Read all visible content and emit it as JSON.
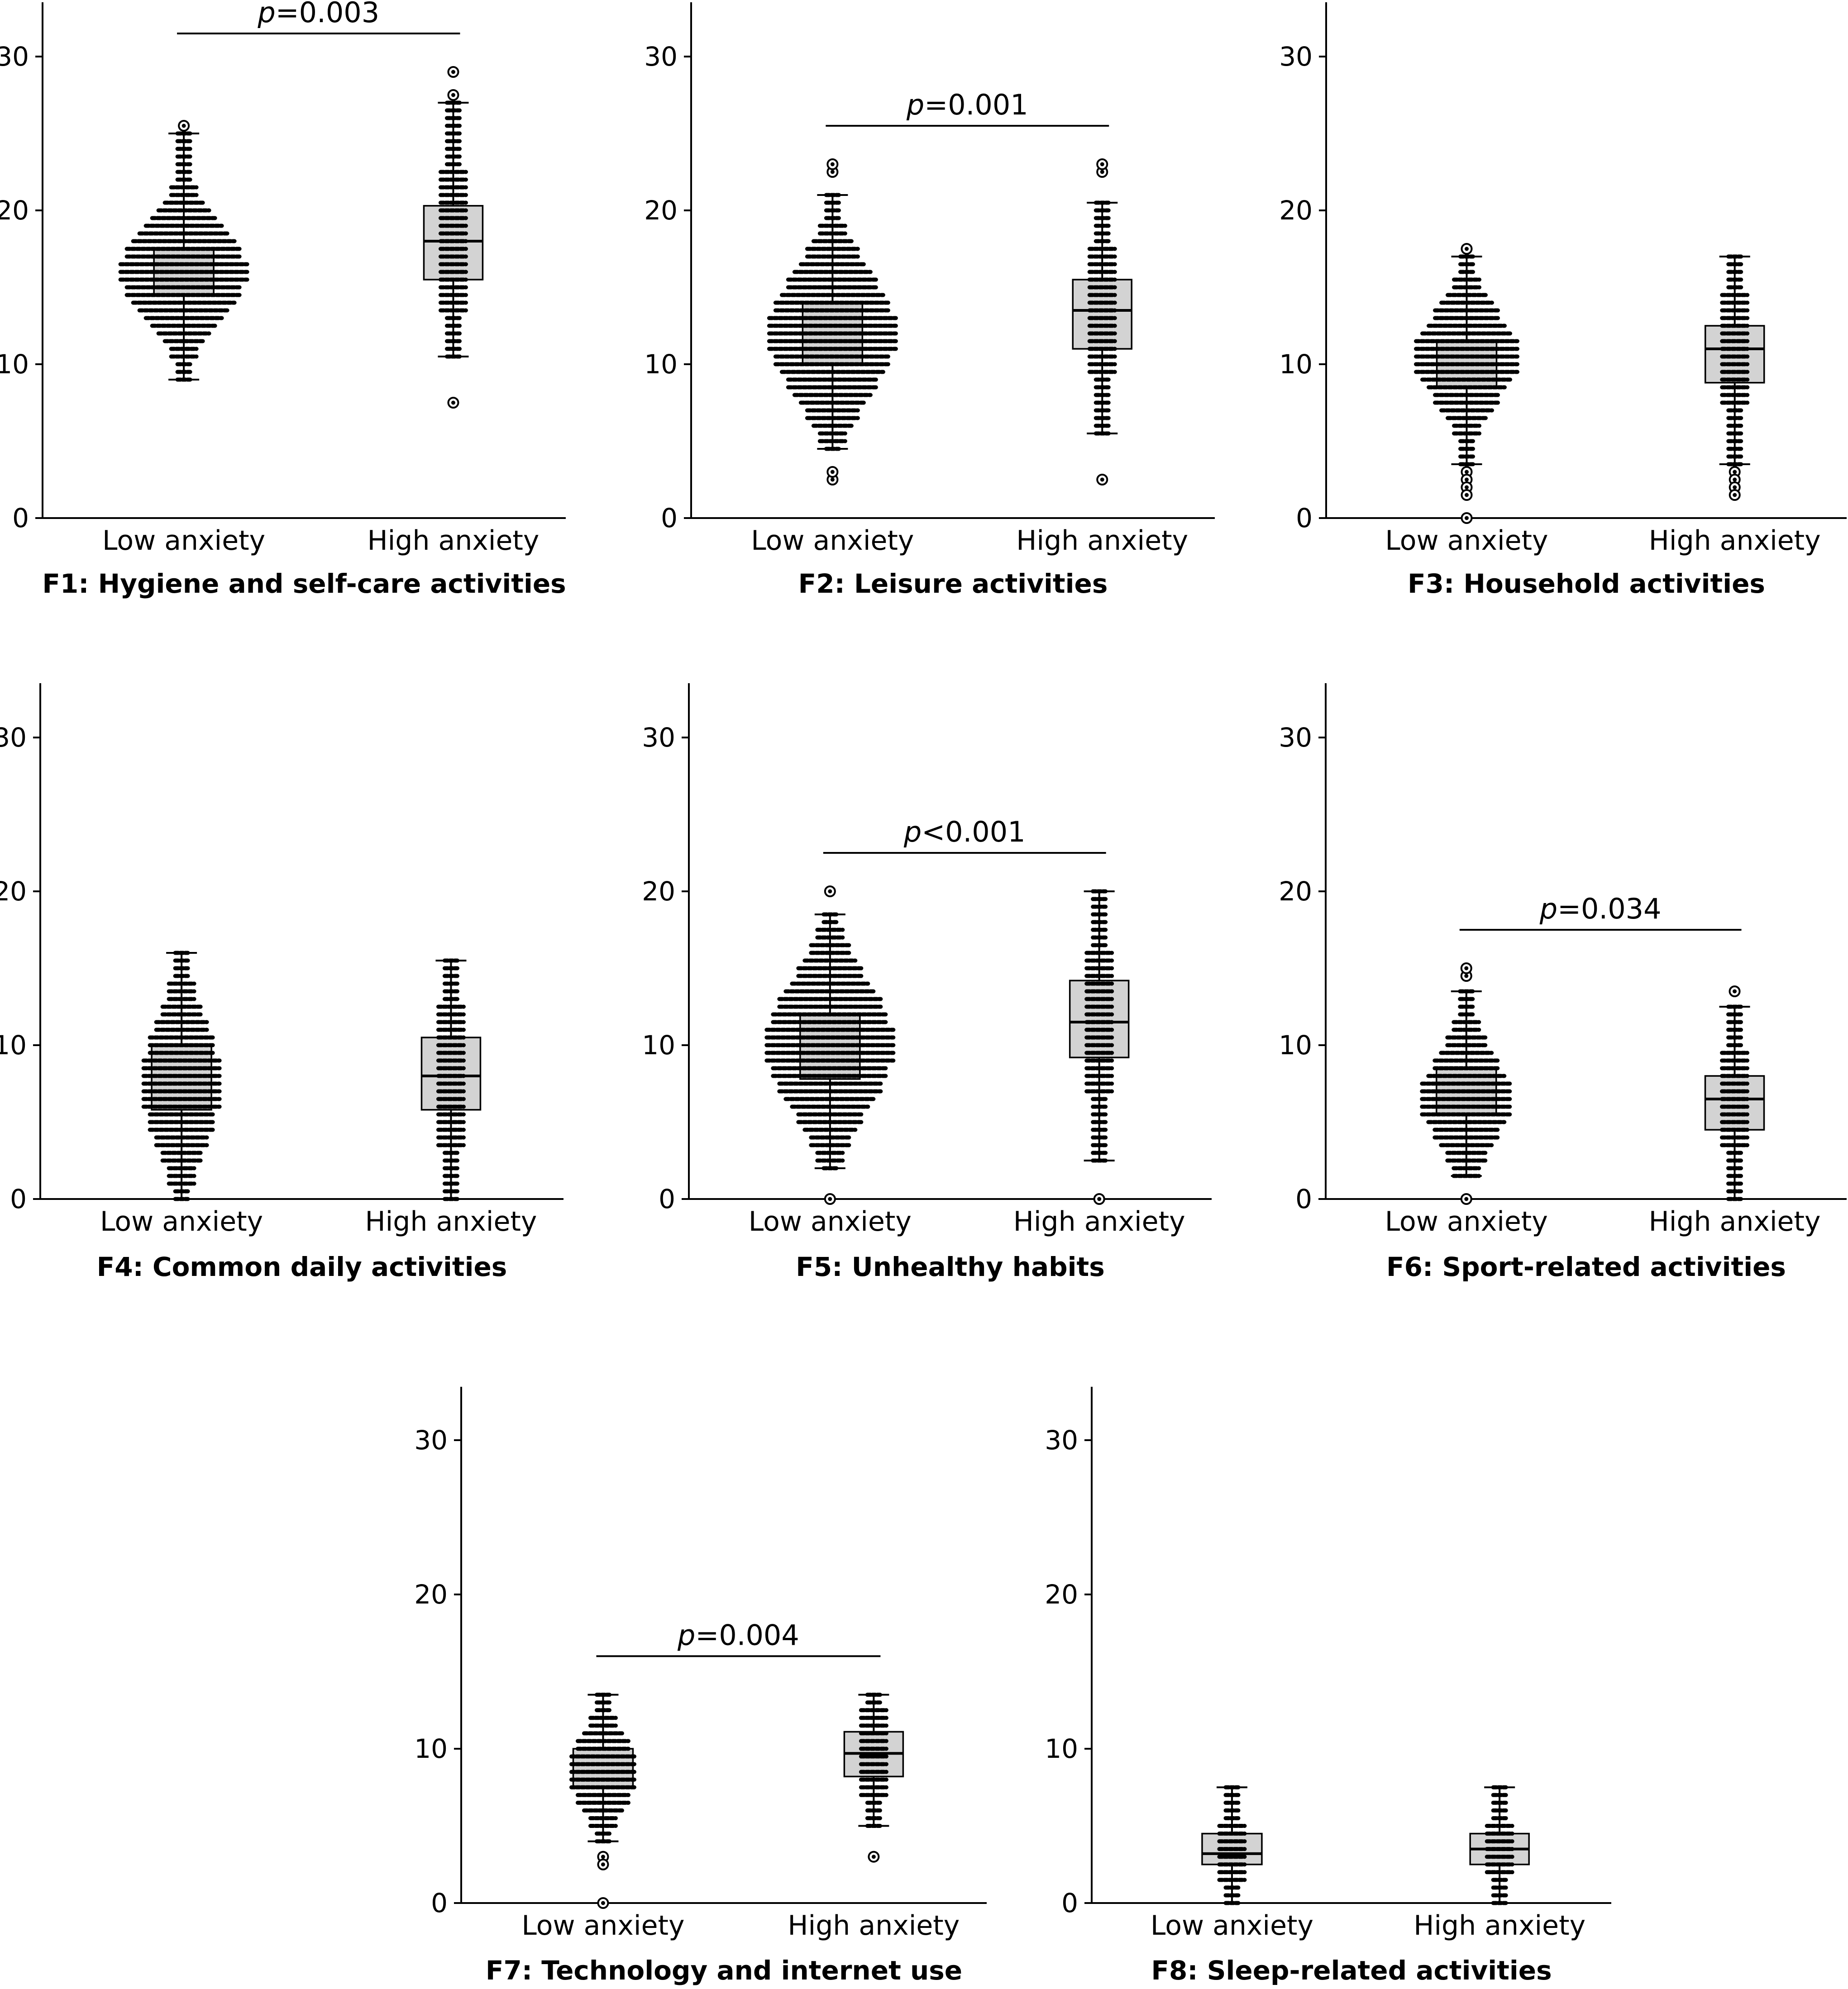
{
  "chart_data": [
    {
      "type": "box",
      "title": "F1: Hygiene and self-care activities",
      "categories": [
        "Low anxiety",
        "High anxiety"
      ],
      "yticks": [
        0,
        10,
        20,
        30
      ],
      "ylim": [
        0,
        33.5
      ],
      "p_value": {
        "prefix": "p",
        "text": "=0.003"
      },
      "groups": [
        {
          "name": "Low anxiety",
          "q1": 14.5,
          "median": 16.0,
          "q3": 17.5,
          "whisker_low": 9.0,
          "whisker_high": 25.0,
          "outliers": [
            25.5
          ],
          "spread_max": 10
        },
        {
          "name": "High anxiety",
          "q1": 15.5,
          "median": 18.0,
          "q3": 20.3,
          "whisker_low": 10.5,
          "whisker_high": 27.0,
          "outliers": [
            27.5,
            29.0,
            7.5
          ],
          "spread_max": 2
        }
      ]
    },
    {
      "type": "box",
      "title": "F2: Leisure activities",
      "categories": [
        "Low anxiety",
        "High anxiety"
      ],
      "yticks": [
        0,
        10,
        20,
        30
      ],
      "ylim": [
        0,
        33.5
      ],
      "p_value": {
        "prefix": "p",
        "text": "=0.001"
      },
      "groups": [
        {
          "name": "Low anxiety",
          "q1": 10.0,
          "median": 12.0,
          "q3": 14.0,
          "whisker_low": 4.5,
          "whisker_high": 21.0,
          "outliers": [
            22.5,
            23.0,
            2.5,
            3.0
          ],
          "spread_max": 10
        },
        {
          "name": "High anxiety",
          "q1": 11.0,
          "median": 13.5,
          "q3": 15.5,
          "whisker_low": 5.5,
          "whisker_high": 20.5,
          "outliers": [
            22.5,
            23.0,
            2.5
          ],
          "spread_max": 2
        }
      ]
    },
    {
      "type": "box",
      "title": "F3: Household activities",
      "categories": [
        "Low anxiety",
        "High anxiety"
      ],
      "yticks": [
        0,
        10,
        20,
        30
      ],
      "ylim": [
        0,
        33.5
      ],
      "p_value": null,
      "groups": [
        {
          "name": "Low anxiety",
          "q1": 8.5,
          "median": 10.5,
          "q3": 11.5,
          "whisker_low": 3.5,
          "whisker_high": 17.0,
          "outliers": [
            17.5,
            3.0,
            2.5,
            2.0,
            1.5,
            0.0
          ],
          "spread_max": 8
        },
        {
          "name": "High anxiety",
          "q1": 8.8,
          "median": 11.0,
          "q3": 12.5,
          "whisker_low": 3.5,
          "whisker_high": 17.0,
          "outliers": [
            3.0,
            2.5,
            2.0,
            1.5
          ],
          "spread_max": 2
        }
      ]
    },
    {
      "type": "box",
      "title": "F4: Common daily activities",
      "categories": [
        "Low anxiety",
        "High anxiety"
      ],
      "yticks": [
        0,
        10,
        20,
        30
      ],
      "ylim": [
        0,
        33.5
      ],
      "p_value": null,
      "groups": [
        {
          "name": "Low anxiety",
          "q1": 5.8,
          "median": 7.5,
          "q3": 10.0,
          "whisker_low": 0.0,
          "whisker_high": 16.0,
          "outliers": [],
          "spread_max": 6
        },
        {
          "name": "High anxiety",
          "q1": 5.8,
          "median": 8.0,
          "q3": 10.5,
          "whisker_low": 0.0,
          "whisker_high": 15.5,
          "outliers": [],
          "spread_max": 2
        }
      ]
    },
    {
      "type": "box",
      "title": "F5: Unhealthy habits",
      "categories": [
        "Low anxiety",
        "High anxiety"
      ],
      "yticks": [
        0,
        10,
        20,
        30
      ],
      "ylim": [
        0,
        33.5
      ],
      "p_value": {
        "prefix": "p",
        "text": "<0.001"
      },
      "groups": [
        {
          "name": "Low anxiety",
          "q1": 7.8,
          "median": 10.0,
          "q3": 12.0,
          "whisker_low": 2.0,
          "whisker_high": 18.5,
          "outliers": [
            20.0,
            0.0
          ],
          "spread_max": 10
        },
        {
          "name": "High anxiety",
          "q1": 9.2,
          "median": 11.5,
          "q3": 14.2,
          "whisker_low": 2.5,
          "whisker_high": 20.0,
          "outliers": [
            0.0
          ],
          "spread_max": 2
        }
      ]
    },
    {
      "type": "box",
      "title": "F6: Sport-related activities",
      "categories": [
        "Low anxiety",
        "High anxiety"
      ],
      "yticks": [
        0,
        10,
        20,
        30
      ],
      "ylim": [
        0,
        33.5
      ],
      "p_value": {
        "prefix": "p",
        "text": "=0.034"
      },
      "groups": [
        {
          "name": "Low anxiety",
          "q1": 5.5,
          "median": 6.5,
          "q3": 8.5,
          "whisker_low": 1.5,
          "whisker_high": 13.5,
          "outliers": [
            14.5,
            15.0,
            0.0
          ],
          "spread_max": 7
        },
        {
          "name": "High anxiety",
          "q1": 4.5,
          "median": 6.5,
          "q3": 8.0,
          "whisker_low": 0.0,
          "whisker_high": 12.5,
          "outliers": [
            13.5
          ],
          "spread_max": 2
        }
      ]
    },
    {
      "type": "box",
      "title": "F7: Technology and internet use",
      "categories": [
        "Low anxiety",
        "High anxiety"
      ],
      "yticks": [
        0,
        10,
        20,
        30
      ],
      "ylim": [
        0,
        33.5
      ],
      "p_value": {
        "prefix": "p",
        "text": "=0.004"
      },
      "groups": [
        {
          "name": "Low anxiety",
          "q1": 7.5,
          "median": 8.5,
          "q3": 10.0,
          "whisker_low": 4.0,
          "whisker_high": 13.5,
          "outliers": [
            3.0,
            2.5,
            0.0
          ],
          "spread_max": 5
        },
        {
          "name": "High anxiety",
          "q1": 8.2,
          "median": 9.7,
          "q3": 11.1,
          "whisker_low": 5.0,
          "whisker_high": 13.5,
          "outliers": [
            3.0
          ],
          "spread_max": 2
        }
      ]
    },
    {
      "type": "box",
      "title": "F8: Sleep-related activities",
      "categories": [
        "Low anxiety",
        "High anxiety"
      ],
      "yticks": [
        0,
        10,
        20,
        30
      ],
      "ylim": [
        0,
        33.5
      ],
      "p_value": null,
      "groups": [
        {
          "name": "Low anxiety",
          "q1": 2.5,
          "median": 3.2,
          "q3": 4.5,
          "whisker_low": 0.0,
          "whisker_high": 7.5,
          "outliers": [],
          "spread_max": 2
        },
        {
          "name": "High anxiety",
          "q1": 2.5,
          "median": 3.5,
          "q3": 4.5,
          "whisker_low": 0.0,
          "whisker_high": 7.5,
          "outliers": [],
          "spread_max": 2
        }
      ]
    }
  ]
}
